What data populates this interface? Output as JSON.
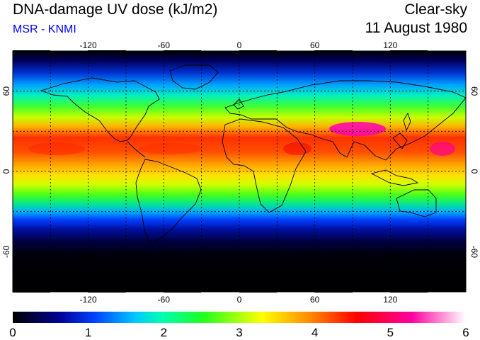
{
  "header": {
    "title": "DNA-damage UV dose (kJ/m2)",
    "source": "MSR - KNMI",
    "condition": "Clear-sky",
    "date": "11 August 1980"
  },
  "map": {
    "projection": "equirectangular",
    "lon_range": [
      -180,
      180
    ],
    "lat_range": [
      -90,
      90
    ],
    "gridlines": "dotted",
    "lon_ticks": [
      -120,
      -60,
      0,
      60,
      120
    ],
    "lon_tick_labels": [
      "-120",
      "-60",
      "0",
      "60",
      "120"
    ],
    "lat_ticks": [
      60,
      0,
      -60
    ],
    "lat_tick_labels": [
      "60",
      "0",
      "-60"
    ],
    "colorbar": {
      "min": 0,
      "max": 6,
      "tick_labels": [
        "0",
        "1",
        "2",
        "3",
        "4",
        "5",
        "6"
      ],
      "colors": [
        "#000000",
        "#0000aa",
        "#0060ff",
        "#00e0e0",
        "#00ff40",
        "#ffff00",
        "#ff8000",
        "#ff0000",
        "#ff00a0",
        "#ffffff"
      ]
    }
  }
}
